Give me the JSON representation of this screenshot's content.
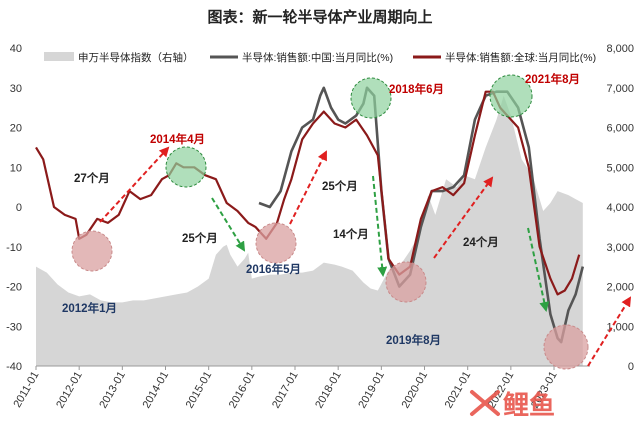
{
  "chart_data": {
    "type": "line",
    "title": "图表：新一轮半导体产业周期向上",
    "x_ticks": [
      "2011-01",
      "2012-01",
      "2013-01",
      "2014-01",
      "2015-01",
      "2016-01",
      "2017-01",
      "2018-01",
      "2019-01",
      "2020-01",
      "2021-01",
      "2022-01",
      "2023-01"
    ],
    "y_left": {
      "min": -40,
      "max": 40,
      "ticks": [
        "-40",
        "-30",
        "-20",
        "-10",
        "0",
        "10",
        "20",
        "30",
        "40"
      ]
    },
    "y_right": {
      "min": 0,
      "max": 8000,
      "ticks": [
        "0",
        "1,000",
        "2,000",
        "3,000",
        "4,000",
        "5,000",
        "6,000",
        "7,000",
        "8,000"
      ]
    },
    "legend": [
      {
        "key": "index",
        "label": "申万半导体指数（右轴）"
      },
      {
        "key": "china",
        "label": "半导体:销售额:中国:当月同比(%)"
      },
      {
        "key": "global",
        "label": "半导体:销售额:全球:当月同比(%)"
      }
    ],
    "series": [
      {
        "key": "index",
        "name": "申万半导体指数（右轴）",
        "axis": "right",
        "kind": "area",
        "points": [
          [
            "2011-01",
            2500
          ],
          [
            "2011-04",
            2350
          ],
          [
            "2011-07",
            2050
          ],
          [
            "2011-10",
            1850
          ],
          [
            "2012-01",
            1750
          ],
          [
            "2012-04",
            1800
          ],
          [
            "2012-07",
            1650
          ],
          [
            "2012-10",
            1600
          ],
          [
            "2013-01",
            1600
          ],
          [
            "2013-04",
            1650
          ],
          [
            "2013-07",
            1650
          ],
          [
            "2013-10",
            1700
          ],
          [
            "2014-01",
            1750
          ],
          [
            "2014-04",
            1800
          ],
          [
            "2014-07",
            1850
          ],
          [
            "2014-10",
            2000
          ],
          [
            "2015-01",
            2200
          ],
          [
            "2015-03",
            2800
          ],
          [
            "2015-05",
            3000
          ],
          [
            "2015-06",
            3050
          ],
          [
            "2015-07",
            2800
          ],
          [
            "2015-09",
            2500
          ],
          [
            "2015-11",
            2700
          ],
          [
            "2015-12",
            2850
          ],
          [
            "2016-01",
            2200
          ],
          [
            "2016-03",
            2250
          ],
          [
            "2016-06",
            2300
          ],
          [
            "2016-09",
            2300
          ],
          [
            "2016-12",
            2350
          ],
          [
            "2017-03",
            2350
          ],
          [
            "2017-06",
            2400
          ],
          [
            "2017-09",
            2600
          ],
          [
            "2017-12",
            2550
          ],
          [
            "2018-02",
            2500
          ],
          [
            "2018-05",
            2400
          ],
          [
            "2018-08",
            2100
          ],
          [
            "2018-10",
            1950
          ],
          [
            "2018-12",
            1900
          ],
          [
            "2019-03",
            2400
          ],
          [
            "2019-06",
            2500
          ],
          [
            "2019-09",
            2900
          ],
          [
            "2019-12",
            3400
          ],
          [
            "2020-02",
            4300
          ],
          [
            "2020-04",
            3800
          ],
          [
            "2020-07",
            4700
          ],
          [
            "2020-10",
            4500
          ],
          [
            "2020-12",
            4800
          ],
          [
            "2021-03",
            4700
          ],
          [
            "2021-06",
            5500
          ],
          [
            "2021-09",
            6200
          ],
          [
            "2021-11",
            6800
          ],
          [
            "2022-01",
            6300
          ],
          [
            "2022-04",
            5200
          ],
          [
            "2022-07",
            4800
          ],
          [
            "2022-10",
            3900
          ],
          [
            "2022-12",
            4100
          ],
          [
            "2023-02",
            4400
          ],
          [
            "2023-05",
            4300
          ],
          [
            "2023-07",
            4200
          ],
          [
            "2023-09",
            4100
          ]
        ]
      },
      {
        "key": "china",
        "name": "半导体:销售额:中国:当月同比(%)",
        "axis": "left",
        "kind": "line",
        "color": "#555555",
        "points": [
          [
            "2016-03",
            1
          ],
          [
            "2016-06",
            0
          ],
          [
            "2016-09",
            4
          ],
          [
            "2016-12",
            14
          ],
          [
            "2017-03",
            20
          ],
          [
            "2017-06",
            22
          ],
          [
            "2017-08",
            28
          ],
          [
            "2017-09",
            30
          ],
          [
            "2017-11",
            25
          ],
          [
            "2018-01",
            22
          ],
          [
            "2018-03",
            21
          ],
          [
            "2018-06",
            23
          ],
          [
            "2018-08",
            26
          ],
          [
            "2018-09",
            30
          ],
          [
            "2018-11",
            28
          ],
          [
            "2019-01",
            4
          ],
          [
            "2019-03",
            -13
          ],
          [
            "2019-06",
            -20
          ],
          [
            "2019-09",
            -17
          ],
          [
            "2019-12",
            -5
          ],
          [
            "2020-03",
            4
          ],
          [
            "2020-06",
            4
          ],
          [
            "2020-09",
            5
          ],
          [
            "2020-12",
            8
          ],
          [
            "2021-03",
            22
          ],
          [
            "2021-06",
            28
          ],
          [
            "2021-09",
            29
          ],
          [
            "2021-12",
            29
          ],
          [
            "2022-03",
            25
          ],
          [
            "2022-06",
            15
          ],
          [
            "2022-09",
            -8
          ],
          [
            "2022-12",
            -27
          ],
          [
            "2023-02",
            -33
          ],
          [
            "2023-03",
            -34
          ],
          [
            "2023-05",
            -26
          ],
          [
            "2023-07",
            -22
          ],
          [
            "2023-09",
            -15
          ]
        ]
      },
      {
        "key": "global",
        "name": "半导体:销售额:全球:当月同比(%)",
        "axis": "left",
        "kind": "line",
        "color": "#8b1a1a",
        "points": [
          [
            "2011-01",
            15
          ],
          [
            "2011-03",
            12
          ],
          [
            "2011-06",
            0
          ],
          [
            "2011-09",
            -2
          ],
          [
            "2011-12",
            -3
          ],
          [
            "2012-01",
            -8
          ],
          [
            "2012-03",
            -7
          ],
          [
            "2012-06",
            -3
          ],
          [
            "2012-09",
            -4
          ],
          [
            "2012-12",
            -2
          ],
          [
            "2013-03",
            4
          ],
          [
            "2013-06",
            2
          ],
          [
            "2013-09",
            3
          ],
          [
            "2013-12",
            7
          ],
          [
            "2014-02",
            8
          ],
          [
            "2014-04",
            11
          ],
          [
            "2014-06",
            10
          ],
          [
            "2014-09",
            10
          ],
          [
            "2014-12",
            8
          ],
          [
            "2015-03",
            7
          ],
          [
            "2015-06",
            1
          ],
          [
            "2015-09",
            -1
          ],
          [
            "2015-12",
            -4
          ],
          [
            "2016-02",
            -5
          ],
          [
            "2016-05",
            -8
          ],
          [
            "2016-08",
            -4
          ],
          [
            "2016-10",
            2
          ],
          [
            "2016-12",
            7
          ],
          [
            "2017-03",
            17
          ],
          [
            "2017-06",
            21
          ],
          [
            "2017-09",
            24
          ],
          [
            "2017-12",
            21
          ],
          [
            "2018-03",
            20
          ],
          [
            "2018-06",
            22
          ],
          [
            "2018-09",
            18
          ],
          [
            "2018-12",
            13
          ],
          [
            "2019-03",
            -13
          ],
          [
            "2019-06",
            -17
          ],
          [
            "2019-09",
            -15
          ],
          [
            "2019-12",
            -3
          ],
          [
            "2020-03",
            4
          ],
          [
            "2020-06",
            5
          ],
          [
            "2020-09",
            3
          ],
          [
            "2020-12",
            6
          ],
          [
            "2021-03",
            18
          ],
          [
            "2021-06",
            29
          ],
          [
            "2021-08",
            29
          ],
          [
            "2021-10",
            25
          ],
          [
            "2021-12",
            23
          ],
          [
            "2022-03",
            20
          ],
          [
            "2022-06",
            10
          ],
          [
            "2022-09",
            -10
          ],
          [
            "2022-12",
            -18
          ],
          [
            "2023-02",
            -22
          ],
          [
            "2023-04",
            -21
          ],
          [
            "2023-06",
            -18
          ],
          [
            "2023-08",
            -12
          ]
        ]
      }
    ],
    "annotations": {
      "months": [
        {
          "text": "27个月",
          "color": "#222222"
        },
        {
          "text": "25个月",
          "color": "#222222"
        },
        {
          "text": "25个月",
          "color": "#222222"
        },
        {
          "text": "14个月",
          "color": "#222222"
        },
        {
          "text": "24个月",
          "color": "#222222"
        }
      ],
      "peaks": [
        {
          "text": "2014年4月",
          "color": "#c00000"
        },
        {
          "text": "2018年6月",
          "color": "#c00000"
        },
        {
          "text": "2021年8月",
          "color": "#c00000"
        }
      ],
      "troughs": [
        {
          "text": "2012年1月",
          "color": "#1f3864"
        },
        {
          "text": "2016年5月",
          "color": "#1f3864"
        },
        {
          "text": "2019年8月",
          "color": "#1f3864"
        }
      ]
    },
    "grid": false,
    "legend_position": "top"
  },
  "watermark": {
    "text": "X鲤鱼"
  },
  "colors": {
    "area": "#d6d6d6",
    "china": "#555555",
    "global": "#8b1a1a",
    "peak_circle": "#8fd19e",
    "trough_circle": "#d9a0a0",
    "up_arrow": "#e02020",
    "down_arrow": "#2ea043"
  }
}
